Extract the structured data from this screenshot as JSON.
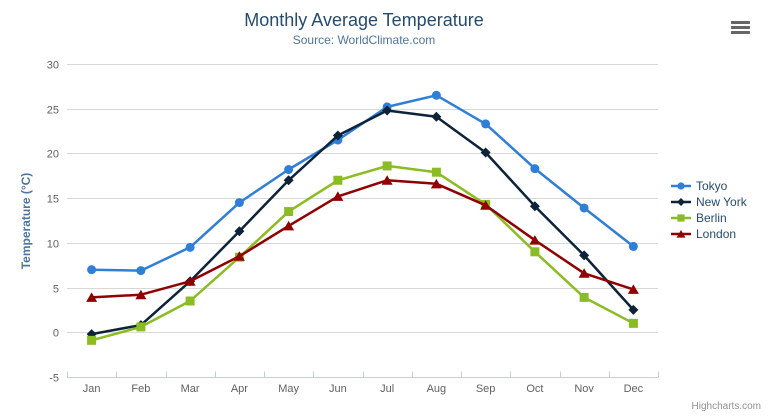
{
  "header": {
    "menu_icon": "hamburger-icon"
  },
  "chart_data": {
    "type": "line",
    "title": "Monthly Average Temperature",
    "subtitle": "Source: WorldClimate.com",
    "xlabel": "",
    "ylabel": "Temperature (°C)",
    "categories": [
      "Jan",
      "Feb",
      "Mar",
      "Apr",
      "May",
      "Jun",
      "Jul",
      "Aug",
      "Sep",
      "Oct",
      "Nov",
      "Dec"
    ],
    "ylim": [
      -5,
      30
    ],
    "ytick_step": 5,
    "yticks": [
      -5,
      0,
      5,
      10,
      15,
      20,
      25,
      30
    ],
    "grid": true,
    "legend_position": "right",
    "series": [
      {
        "name": "Tokyo",
        "color": "#2f7ed8",
        "marker": "circle",
        "values": [
          7.0,
          6.9,
          9.5,
          14.5,
          18.2,
          21.5,
          25.2,
          26.5,
          23.3,
          18.3,
          13.9,
          9.6
        ]
      },
      {
        "name": "New York",
        "color": "#0d233a",
        "marker": "diamond",
        "values": [
          -0.2,
          0.8,
          5.7,
          11.3,
          17.0,
          22.0,
          24.8,
          24.1,
          20.1,
          14.1,
          8.6,
          2.5
        ]
      },
      {
        "name": "Berlin",
        "color": "#8bbc21",
        "marker": "square",
        "values": [
          -0.9,
          0.6,
          3.5,
          8.4,
          13.5,
          17.0,
          18.6,
          17.9,
          14.3,
          9.0,
          3.9,
          1.0
        ]
      },
      {
        "name": "London",
        "color": "#910000",
        "marker": "triangle",
        "values": [
          3.9,
          4.2,
          5.7,
          8.5,
          11.9,
          15.2,
          17.0,
          16.6,
          14.2,
          10.3,
          6.6,
          4.8
        ]
      }
    ],
    "credits": "Highcharts.com"
  }
}
